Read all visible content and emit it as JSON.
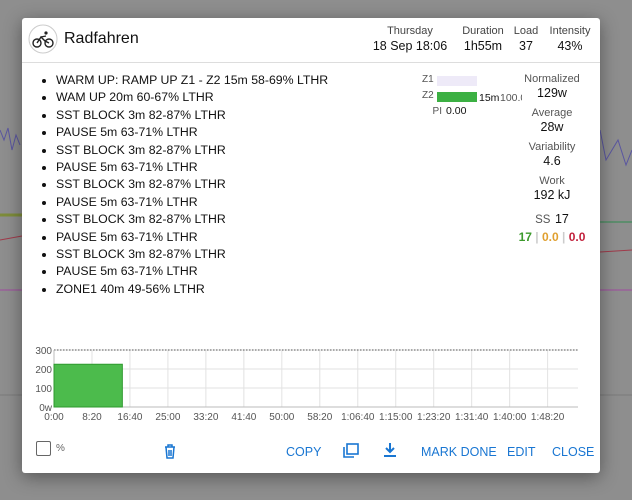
{
  "header": {
    "title": "Radfahren",
    "fields": [
      {
        "label": "Thursday",
        "value": "18 Sep 18:06"
      },
      {
        "label": "Duration",
        "value": "1h55m"
      },
      {
        "label": "Load",
        "value": "37"
      },
      {
        "label": "Intensity",
        "value": "43%"
      }
    ]
  },
  "steps": [
    "WARM UP: RAMP UP Z1 - Z2 15m 58-69% LTHR",
    "WAM UP 20m 60-67% LTHR",
    "SST BLOCK 3m 82-87% LTHR",
    "PAUSE 5m 63-71% LTHR",
    "SST BLOCK 3m 82-87% LTHR",
    "PAUSE 5m 63-71% LTHR",
    "SST BLOCK 3m 82-87% LTHR",
    "PAUSE 5m 63-71% LTHR",
    "SST BLOCK 3m 82-87% LTHR",
    "PAUSE 5m 63-71% LTHR",
    "SST BLOCK 3m 82-87% LTHR",
    "PAUSE 5m 63-71% LTHR",
    "ZONE1 40m 49-56% LTHR"
  ],
  "zones": {
    "labels": [
      "Z1",
      "Z2"
    ],
    "times": [
      null,
      "15m"
    ],
    "values": [
      null,
      100
    ],
    "value_labels": [
      null,
      "100.0%"
    ],
    "pi_label": "PI",
    "pi_value": "0.00"
  },
  "stats": [
    {
      "label": "Normalized",
      "value": "129w"
    },
    {
      "label": "Average",
      "value": "28w"
    },
    {
      "label": "Variability",
      "value": "4.6"
    },
    {
      "label": "Work",
      "value": "192 kJ"
    }
  ],
  "ss": {
    "label": "SS",
    "value": "17",
    "parts": [
      "17",
      "0.0",
      "0.0"
    ]
  },
  "chart_data": {
    "type": "histogram",
    "bins": [
      0,
      900
    ],
    "values": [
      225
    ],
    "color": "#4cbb4c",
    "xlim": [
      0,
      6900
    ],
    "xticks": [
      {
        "value": 0,
        "label": "0:00"
      },
      {
        "value": 500,
        "label": "8:20"
      },
      {
        "value": 1000,
        "label": "16:40"
      },
      {
        "value": 1500,
        "label": "25:00"
      },
      {
        "value": 2000,
        "label": "33:20"
      },
      {
        "value": 2500,
        "label": "41:40"
      },
      {
        "value": 3000,
        "label": "50:00"
      },
      {
        "value": 3500,
        "label": "58:20"
      },
      {
        "value": 4000,
        "label": "1:06:40"
      },
      {
        "value": 4500,
        "label": "1:15:00"
      },
      {
        "value": 5000,
        "label": "1:23:20"
      },
      {
        "value": 5500,
        "label": "1:31:40"
      },
      {
        "value": 6000,
        "label": "1:40:00"
      },
      {
        "value": 6500,
        "label": "1:48:20"
      }
    ],
    "ylim": [
      0,
      300
    ],
    "yticks": [
      {
        "value": 0,
        "label": "0w"
      },
      100,
      200,
      300
    ],
    "grid": true
  },
  "footer": {
    "percent_label": "%",
    "buttons": [
      "COPY",
      "MARK DONE",
      "EDIT",
      "CLOSE"
    ]
  }
}
